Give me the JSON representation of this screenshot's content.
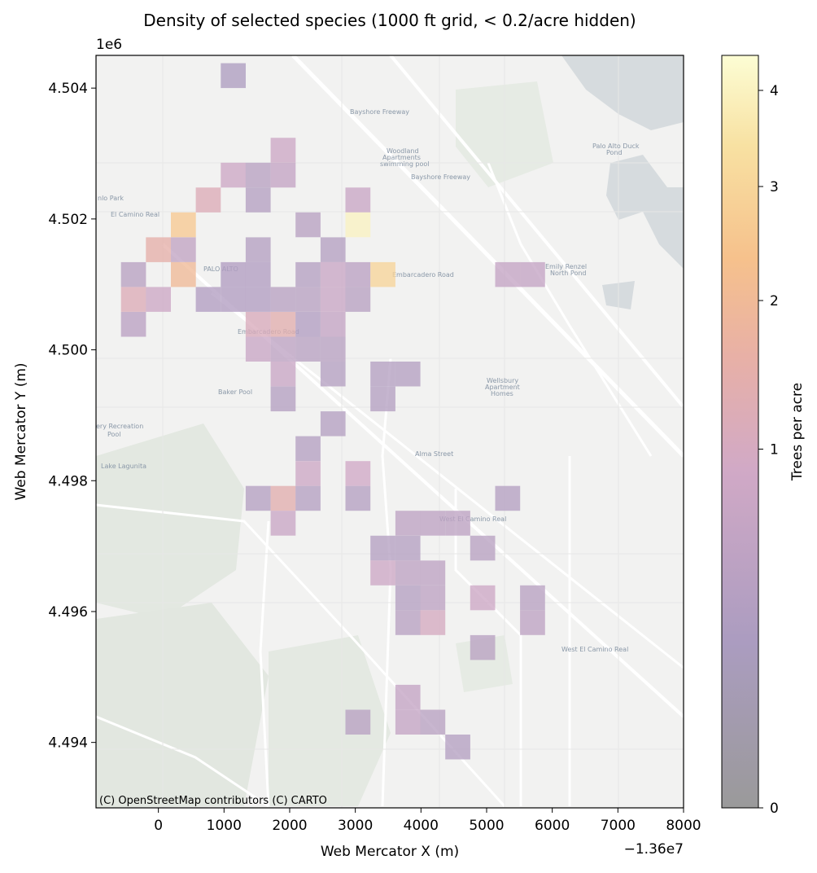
{
  "chart_data": {
    "type": "heatmap",
    "title": "Density of selected species (1000 ft grid, < 0.2/acre hidden)",
    "xlabel": "Web Mercator X (m)",
    "ylabel": "Web Mercator Y (m)",
    "x_offset_label": "−1.36e7",
    "y_offset_label": "1e6",
    "x_ticks": [
      0,
      1000,
      2000,
      3000,
      4000,
      5000,
      6000,
      7000,
      8000
    ],
    "x_tick_labels": [
      "0",
      "1000",
      "2000",
      "3000",
      "4000",
      "5000",
      "6000",
      "7000",
      "8000"
    ],
    "y_ticks": [
      4.494,
      4.496,
      4.498,
      4.5,
      4.502,
      4.504
    ],
    "y_tick_labels": [
      "4.494",
      "4.496",
      "4.498",
      "4.500",
      "4.502",
      "4.504"
    ],
    "xlim": [
      -950,
      8000
    ],
    "ylim": [
      4.493,
      4.5045
    ],
    "cell_size_m": 380,
    "colorbar": {
      "label": "Trees per acre",
      "ticks": [
        0,
        1,
        2,
        3,
        4
      ],
      "tick_labels": [
        "0",
        "1",
        "2",
        "3",
        "4"
      ],
      "range": [
        0,
        4.4
      ],
      "scale": "sqrt"
    },
    "attribution": "(C) OpenStreetMap contributors (C) CARTO",
    "cells": [
      {
        "x": 1140,
        "y": 4.50419,
        "v": 0.25
      },
      {
        "x": 1900,
        "y": 4.50305,
        "v": 0.8
      },
      {
        "x": 1140,
        "y": 4.50267,
        "v": 0.8
      },
      {
        "x": 1520,
        "y": 4.50267,
        "v": 0.4
      },
      {
        "x": 1900,
        "y": 4.50267,
        "v": 0.6
      },
      {
        "x": 760,
        "y": 4.50229,
        "v": 1.2
      },
      {
        "x": 1520,
        "y": 4.50229,
        "v": 0.35
      },
      {
        "x": 3040,
        "y": 4.50229,
        "v": 0.7
      },
      {
        "x": 380,
        "y": 4.50191,
        "v": 2.6
      },
      {
        "x": 2280,
        "y": 4.50191,
        "v": 0.4
      },
      {
        "x": 3040,
        "y": 4.50191,
        "v": 4.0
      },
      {
        "x": 0,
        "y": 4.50153,
        "v": 1.5
      },
      {
        "x": 380,
        "y": 4.50153,
        "v": 0.55
      },
      {
        "x": 1520,
        "y": 4.50153,
        "v": 0.35
      },
      {
        "x": 2660,
        "y": 4.50153,
        "v": 0.35
      },
      {
        "x": -380,
        "y": 4.50115,
        "v": 0.4
      },
      {
        "x": 380,
        "y": 4.50115,
        "v": 2.0
      },
      {
        "x": 1140,
        "y": 4.50115,
        "v": 0.3
      },
      {
        "x": 1520,
        "y": 4.50115,
        "v": 0.3
      },
      {
        "x": 2280,
        "y": 4.50115,
        "v": 0.35
      },
      {
        "x": 2660,
        "y": 4.50115,
        "v": 0.7
      },
      {
        "x": 3040,
        "y": 4.50115,
        "v": 0.45
      },
      {
        "x": 3420,
        "y": 4.50115,
        "v": 3.0
      },
      {
        "x": 5320,
        "y": 4.50115,
        "v": 0.6
      },
      {
        "x": 5700,
        "y": 4.50115,
        "v": 0.6
      },
      {
        "x": -380,
        "y": 4.50077,
        "v": 1.2
      },
      {
        "x": 0,
        "y": 4.50077,
        "v": 0.8
      },
      {
        "x": 760,
        "y": 4.50077,
        "v": 0.3
      },
      {
        "x": 1140,
        "y": 4.50077,
        "v": 0.3
      },
      {
        "x": 1520,
        "y": 4.50077,
        "v": 0.3
      },
      {
        "x": 1900,
        "y": 4.50077,
        "v": 0.4
      },
      {
        "x": 2280,
        "y": 4.50077,
        "v": 0.4
      },
      {
        "x": 2660,
        "y": 4.50077,
        "v": 0.7
      },
      {
        "x": 3040,
        "y": 4.50077,
        "v": 0.4
      },
      {
        "x": -380,
        "y": 4.50039,
        "v": 0.45
      },
      {
        "x": 1520,
        "y": 4.50039,
        "v": 1.1
      },
      {
        "x": 1900,
        "y": 4.50039,
        "v": 1.4
      },
      {
        "x": 2280,
        "y": 4.50039,
        "v": 0.3
      },
      {
        "x": 2660,
        "y": 4.50039,
        "v": 0.6
      },
      {
        "x": 1520,
        "y": 4.50001,
        "v": 0.7
      },
      {
        "x": 1900,
        "y": 4.50001,
        "v": 0.5
      },
      {
        "x": 2280,
        "y": 4.50001,
        "v": 0.4
      },
      {
        "x": 2660,
        "y": 4.50001,
        "v": 0.4
      },
      {
        "x": 1900,
        "y": 4.49963,
        "v": 0.7
      },
      {
        "x": 2660,
        "y": 4.49963,
        "v": 0.35
      },
      {
        "x": 3420,
        "y": 4.49963,
        "v": 0.35
      },
      {
        "x": 3800,
        "y": 4.49963,
        "v": 0.35
      },
      {
        "x": 1900,
        "y": 4.49925,
        "v": 0.35
      },
      {
        "x": 3420,
        "y": 4.49925,
        "v": 0.35
      },
      {
        "x": 2660,
        "y": 4.49887,
        "v": 0.35
      },
      {
        "x": 2280,
        "y": 4.49849,
        "v": 0.35
      },
      {
        "x": 2280,
        "y": 4.49811,
        "v": 0.8
      },
      {
        "x": 3040,
        "y": 4.49811,
        "v": 0.9
      },
      {
        "x": 1520,
        "y": 4.49773,
        "v": 0.35
      },
      {
        "x": 1900,
        "y": 4.49773,
        "v": 1.4
      },
      {
        "x": 2280,
        "y": 4.49773,
        "v": 0.35
      },
      {
        "x": 3040,
        "y": 4.49773,
        "v": 0.35
      },
      {
        "x": 5320,
        "y": 4.49773,
        "v": 0.35
      },
      {
        "x": 1900,
        "y": 4.49735,
        "v": 0.7
      },
      {
        "x": 3800,
        "y": 4.49735,
        "v": 0.5
      },
      {
        "x": 4180,
        "y": 4.49735,
        "v": 0.5
      },
      {
        "x": 4560,
        "y": 4.49735,
        "v": 0.5
      },
      {
        "x": 3420,
        "y": 4.49697,
        "v": 0.35
      },
      {
        "x": 3800,
        "y": 4.49697,
        "v": 0.35
      },
      {
        "x": 4940,
        "y": 4.49697,
        "v": 0.4
      },
      {
        "x": 3420,
        "y": 4.49659,
        "v": 0.8
      },
      {
        "x": 3800,
        "y": 4.49659,
        "v": 0.5
      },
      {
        "x": 4180,
        "y": 4.49659,
        "v": 0.5
      },
      {
        "x": 3800,
        "y": 4.49621,
        "v": 0.35
      },
      {
        "x": 4180,
        "y": 4.49621,
        "v": 0.5
      },
      {
        "x": 4940,
        "y": 4.49621,
        "v": 0.8
      },
      {
        "x": 5700,
        "y": 4.49621,
        "v": 0.4
      },
      {
        "x": 3800,
        "y": 4.49583,
        "v": 0.4
      },
      {
        "x": 4180,
        "y": 4.49583,
        "v": 1.0
      },
      {
        "x": 5700,
        "y": 4.49583,
        "v": 0.5
      },
      {
        "x": 4940,
        "y": 4.49545,
        "v": 0.4
      },
      {
        "x": 3800,
        "y": 4.49469,
        "v": 0.6
      },
      {
        "x": 3040,
        "y": 4.49431,
        "v": 0.4
      },
      {
        "x": 3800,
        "y": 4.49431,
        "v": 0.6
      },
      {
        "x": 4180,
        "y": 4.49431,
        "v": 0.4
      },
      {
        "x": 4560,
        "y": 4.49393,
        "v": 0.35
      }
    ]
  }
}
